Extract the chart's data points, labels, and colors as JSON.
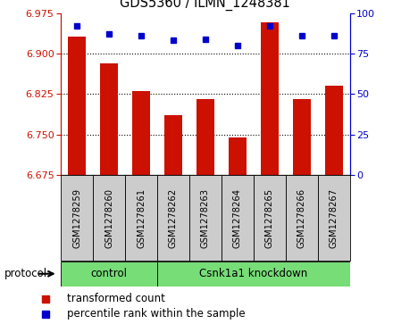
{
  "title": "GDS5360 / ILMN_1248381",
  "samples": [
    "GSM1278259",
    "GSM1278260",
    "GSM1278261",
    "GSM1278262",
    "GSM1278263",
    "GSM1278264",
    "GSM1278265",
    "GSM1278266",
    "GSM1278267"
  ],
  "bar_values": [
    6.932,
    6.882,
    6.831,
    6.785,
    6.815,
    6.745,
    6.957,
    6.815,
    6.84
  ],
  "percentile_values": [
    92,
    87,
    86,
    83,
    84,
    80,
    92,
    86,
    86
  ],
  "bar_bottom": 6.675,
  "ylim_left": [
    6.675,
    6.975
  ],
  "ylim_right": [
    0,
    100
  ],
  "yticks_left": [
    6.675,
    6.75,
    6.825,
    6.9,
    6.975
  ],
  "yticks_right": [
    0,
    25,
    50,
    75,
    100
  ],
  "bar_color": "#cc1100",
  "dot_color": "#0000cc",
  "control_label": "control",
  "knockdown_label": "Csnk1a1 knockdown",
  "protocol_label": "protocol",
  "legend_bar_label": "transformed count",
  "legend_dot_label": "percentile rank within the sample",
  "group_bg_color": "#77dd77",
  "tick_bg_color": "#cccccc",
  "left_axis_color": "#cc1100",
  "right_axis_color": "#0000cc",
  "n_control": 3,
  "gridline_y": [
    6.9,
    6.825,
    6.75
  ]
}
